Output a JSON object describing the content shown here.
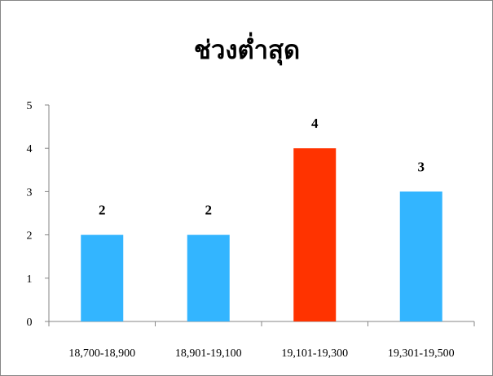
{
  "chart_data": {
    "type": "bar",
    "title": "ช่วงต่ำสุด",
    "categories": [
      "18,700-18,900",
      "18,901-19,100",
      "19,101-19,300",
      "19,301-19,500"
    ],
    "values": [
      2,
      2,
      4,
      3
    ],
    "data_labels": [
      "2",
      "2",
      "4",
      "3"
    ],
    "ylim": [
      0,
      5
    ],
    "yticks": [
      "0",
      "1",
      "2",
      "3",
      "4",
      "5"
    ],
    "xlabel": "",
    "ylabel": "",
    "grid": false,
    "legend": false,
    "colors": {
      "default": "#33B5FF",
      "highlight": "#FF3300",
      "highlight_index": 2,
      "axis": "#868686"
    }
  }
}
